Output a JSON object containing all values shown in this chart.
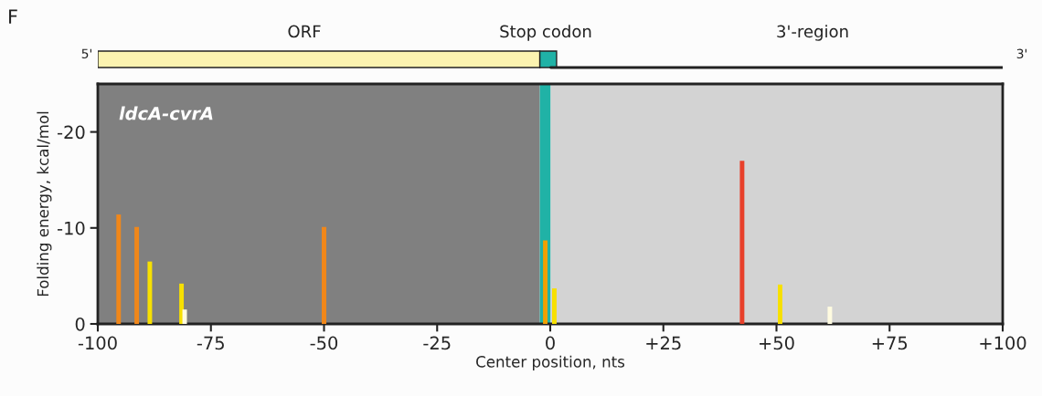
{
  "chart_data": {
    "type": "bar",
    "xlabel": "Center position, nts",
    "ylabel": "Folding energy, kcal/mol",
    "x": [
      -95.4,
      -91.4,
      -88.5,
      -81.5,
      -80.8,
      -50,
      -1.1,
      0.9,
      42.4,
      50.8,
      61.8
    ],
    "values": [
      -11.4,
      -10.1,
      -6.5,
      -4.2,
      -1.5,
      -10.1,
      -8.7,
      -3.7,
      -17.0,
      -4.1,
      -1.8
    ],
    "colors": [
      "#f0871a",
      "#f0871a",
      "#f7e000",
      "#f7e000",
      "#fffbe0",
      "#f0871a",
      "#f0a000",
      "#f7e000",
      "#e8402a",
      "#f7e000",
      "#fffbe0"
    ],
    "xlim": [
      -100,
      100
    ],
    "xticks": [
      -100,
      -75,
      -50,
      -25,
      0,
      {
        "value": 25,
        "label": "+25"
      },
      {
        "value": 50,
        "label": "+50"
      },
      {
        "value": 75,
        "label": "+75"
      },
      {
        "value": 100,
        "label": "+100"
      }
    ],
    "ylim": [
      0,
      -25
    ],
    "yticks": [
      -20,
      -10,
      0
    ],
    "bands": [
      {
        "axis": "x",
        "from": -100,
        "to": -2.3,
        "color": "#808080"
      },
      {
        "axis": "x",
        "from": -2.3,
        "to": 0.1,
        "color": "#20b2a6"
      },
      {
        "axis": "x",
        "from": 0.1,
        "to": 100,
        "color": "#d3d3d3"
      }
    ],
    "annotations": [
      "F",
      "ORF",
      "Stop codon",
      "3'-region",
      "5'",
      "3'",
      "ldcA-cvrA"
    ]
  }
}
